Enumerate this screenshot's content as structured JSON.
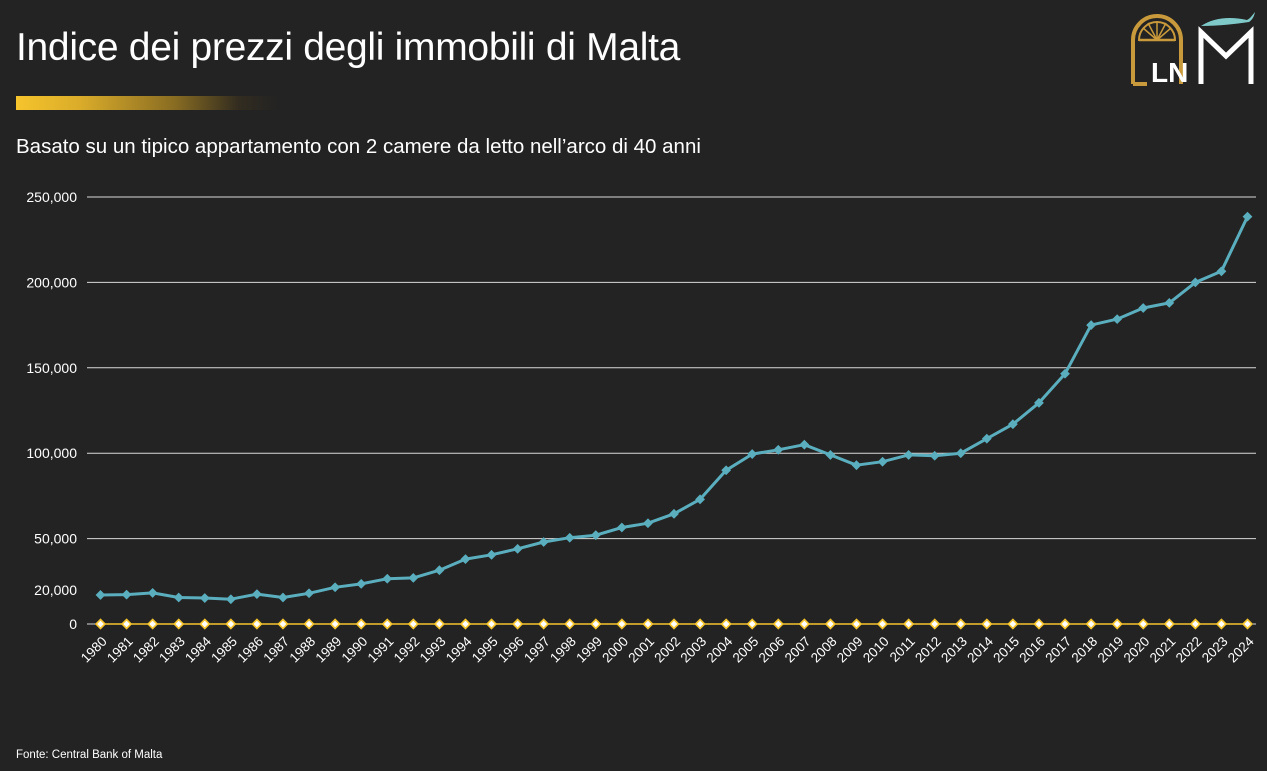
{
  "header": {
    "title": "Indice dei prezzi degli immobili di Malta",
    "subtitle": "Basato su un tipico appartamento con 2 camere da letto nell’arco di 40 anni"
  },
  "footer": {
    "source": "Fonte: Central Bank of Malta"
  },
  "logos": {
    "left_letters": "LN",
    "right_letter": "M",
    "left_icon": "door-arch-logo-icon",
    "right_icon": "whale-m-logo-icon"
  },
  "colors": {
    "background": "#232323",
    "accent_gold": "#f6c42c",
    "series_blue": "#5aaebe",
    "series_gold": "#f6c42c",
    "logo_gold": "#c99a3b",
    "logo_teal": "#7fc9c9"
  },
  "chart_data": {
    "type": "line",
    "title": "Indice dei prezzi degli immobili di Malta",
    "subtitle": "Basato su un tipico appartamento con 2 camere da letto nell’arco di 40 anni",
    "xlabel": "",
    "ylabel": "",
    "ylim": [
      0,
      250000
    ],
    "yticks": [
      0,
      20000,
      50000,
      100000,
      150000,
      200000,
      250000
    ],
    "ytick_labels": [
      "0",
      "20,000",
      "50,000",
      "100,000",
      "150,000",
      "200,000",
      "250,000"
    ],
    "gridlines": [
      50000,
      100000,
      150000,
      200000,
      250000
    ],
    "grid": true,
    "legend": "none",
    "x": [
      "1980",
      "1981",
      "1982",
      "1983",
      "1984",
      "1985",
      "1986",
      "1987",
      "1988",
      "1989",
      "1990",
      "1991",
      "1992",
      "1993",
      "1994",
      "1995",
      "1996",
      "1997",
      "1998",
      "1999",
      "2000",
      "2001",
      "2002",
      "2003",
      "2004",
      "2005",
      "2006",
      "2007",
      "2008",
      "2009",
      "2010",
      "2011",
      "2012",
      "2013",
      "2014",
      "2015",
      "2016",
      "2017",
      "2018",
      "2019",
      "2020",
      "2021",
      "2022",
      "2023",
      "2024"
    ],
    "series": [
      {
        "color": "#5aaebe",
        "marker": "diamond",
        "values": [
          17000,
          17200,
          18200,
          15500,
          15200,
          14500,
          17500,
          15500,
          18000,
          21500,
          23500,
          26500,
          27000,
          31500,
          38000,
          40500,
          44000,
          48000,
          50500,
          52000,
          56500,
          59000,
          64500,
          73000,
          90000,
          99500,
          102000,
          105000,
          99000,
          93000,
          95000,
          99000,
          98500,
          100000,
          108500,
          117000,
          129500,
          146500,
          175000,
          178500,
          185000,
          188000,
          200000,
          206500,
          238500
        ]
      },
      {
        "color": "#f6c42c",
        "marker": "diamond-hollow",
        "values": [
          0,
          0,
          0,
          0,
          0,
          0,
          0,
          0,
          0,
          0,
          0,
          0,
          0,
          0,
          0,
          0,
          0,
          0,
          0,
          0,
          0,
          0,
          0,
          0,
          0,
          0,
          0,
          0,
          0,
          0,
          0,
          0,
          0,
          0,
          0,
          0,
          0,
          0,
          0,
          0,
          0,
          0,
          0,
          0,
          0
        ]
      }
    ]
  }
}
